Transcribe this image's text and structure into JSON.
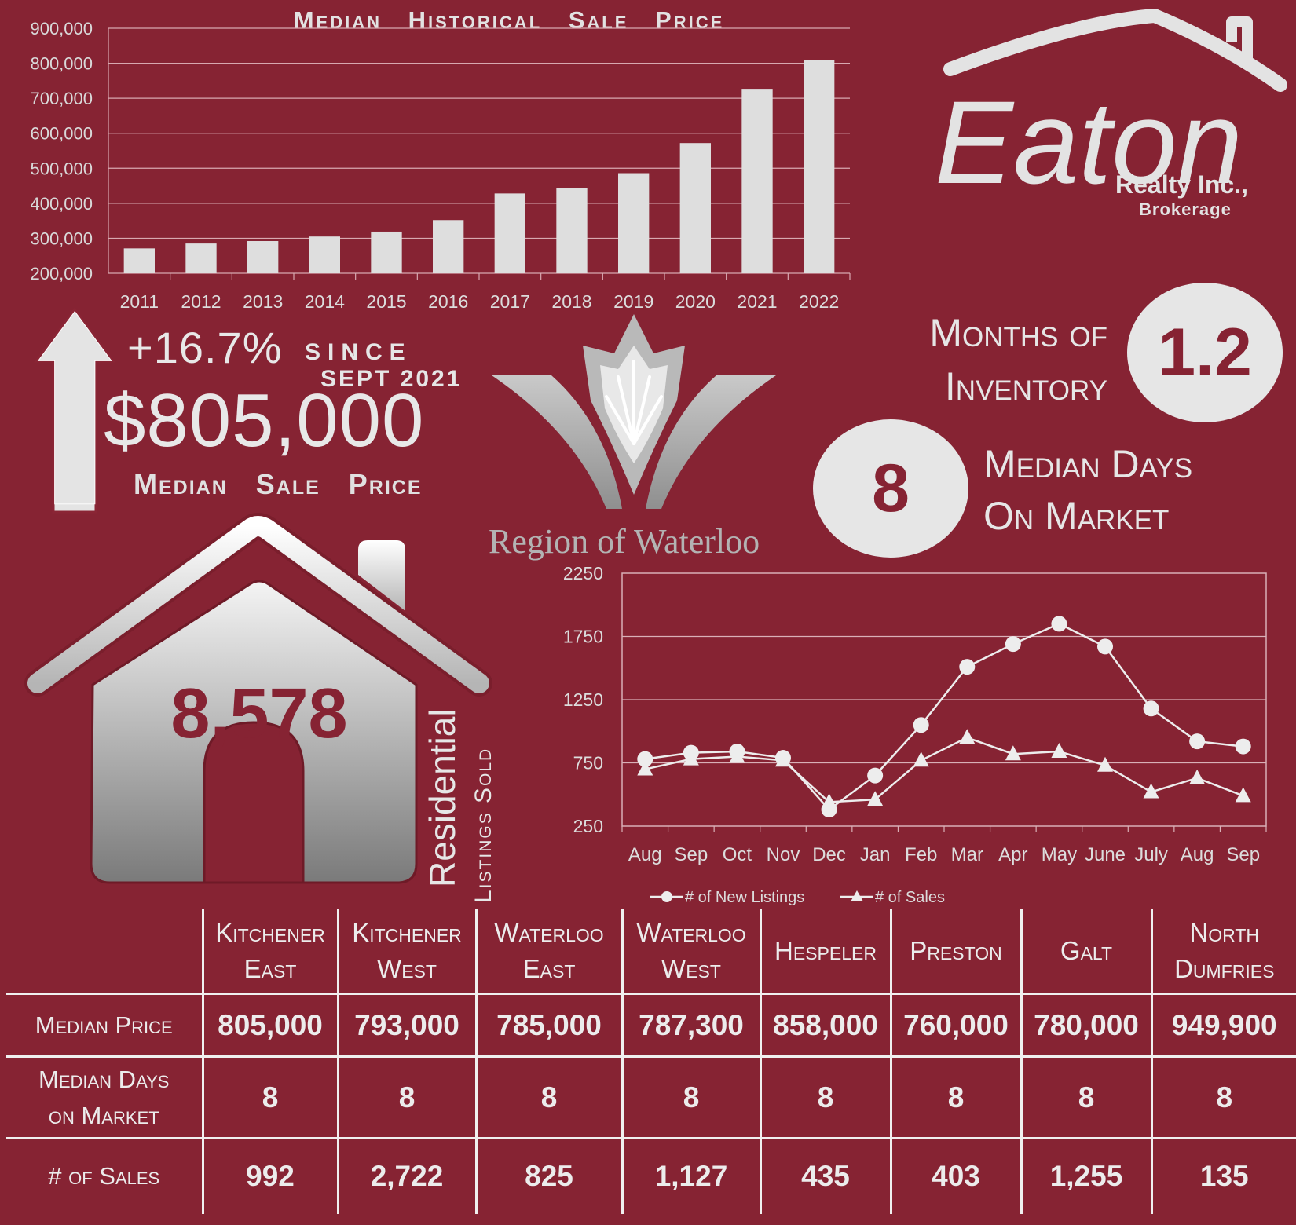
{
  "chart_data": [
    {
      "type": "bar",
      "title": "Median Historical Sale Price",
      "categories": [
        "2011",
        "2012",
        "2013",
        "2014",
        "2015",
        "2016",
        "2017",
        "2018",
        "2019",
        "2020",
        "2021",
        "2022"
      ],
      "values": [
        271000,
        285000,
        292000,
        305000,
        319000,
        352000,
        428000,
        443000,
        486000,
        572000,
        727000,
        810000
      ],
      "ylim": [
        200000,
        900000
      ],
      "yticks": [
        "200,000",
        "300,000",
        "400,000",
        "500,000",
        "600,000",
        "700,000",
        "800,000",
        "900,000"
      ],
      "ytick_values": [
        200000,
        300000,
        400000,
        500000,
        600000,
        700000,
        800000,
        900000
      ],
      "grid": true,
      "bar_color": "#dedede"
    },
    {
      "type": "line",
      "categories": [
        "Aug",
        "Sep",
        "Oct",
        "Nov",
        "Dec",
        "Jan",
        "Feb",
        "Mar",
        "Apr",
        "May",
        "June",
        "July",
        "Aug",
        "Sep"
      ],
      "series": [
        {
          "name": "# of New Listings",
          "marker": "circle",
          "values": [
            780,
            830,
            840,
            790,
            380,
            650,
            1050,
            1510,
            1690,
            1850,
            1670,
            1180,
            920,
            880
          ]
        },
        {
          "name": "# of Sales",
          "marker": "triangle",
          "values": [
            700,
            780,
            800,
            770,
            440,
            460,
            770,
            950,
            820,
            840,
            730,
            520,
            630,
            490
          ]
        }
      ],
      "ylim": [
        250,
        2250
      ],
      "yticks": [
        "250",
        "750",
        "1250",
        "1750",
        "2250"
      ],
      "ytick_values": [
        250,
        750,
        1250,
        1750,
        2250
      ],
      "grid": true,
      "legend": "bottom"
    }
  ],
  "brand": {
    "name": "Eaton",
    "line1": "Realty Inc.,",
    "line2": "Brokerage"
  },
  "headline": {
    "change": "+16.7%",
    "since": "SINCE",
    "since_date": "SEPT 2021",
    "price": "$805,000",
    "price_label": "Median Sale Price"
  },
  "inventory": {
    "months_label_1": "Months of",
    "months_label_2": "Inventory",
    "months_value": "1.2",
    "days_value": "8",
    "days_label_1": "Median Days",
    "days_label_2": "On Market"
  },
  "region": "Region of Waterloo",
  "sold": {
    "value": "8,578",
    "label_1": "Residential",
    "label_2": "Listings Sold"
  },
  "table": {
    "columns": [
      {
        "l1": "Kitchener",
        "l2": "East"
      },
      {
        "l1": "Kitchener",
        "l2": "West"
      },
      {
        "l1": "Waterloo",
        "l2": "East"
      },
      {
        "l1": "Waterloo",
        "l2": "West"
      },
      {
        "l1": "Hespeler",
        "l2": ""
      },
      {
        "l1": "Preston",
        "l2": ""
      },
      {
        "l1": "Galt",
        "l2": ""
      },
      {
        "l1": "North",
        "l2": "Dumfries"
      }
    ],
    "rows": [
      {
        "l1": "Median Price",
        "l2": "",
        "values": [
          "805,000",
          "793,000",
          "785,000",
          "787,300",
          "858,000",
          "760,000",
          "780,000",
          "949,900"
        ]
      },
      {
        "l1": "Median Days",
        "l2": "on Market",
        "values": [
          "8",
          "8",
          "8",
          "8",
          "8",
          "8",
          "8",
          "8"
        ]
      },
      {
        "l1": "# of Sales",
        "l2": "",
        "values": [
          "992",
          "2,722",
          "825",
          "1,127",
          "435",
          "403",
          "1,255",
          "135"
        ]
      }
    ]
  },
  "colors": {
    "background": "#862333",
    "light": "#e6e6e6"
  },
  "icons": [
    "up-arrow-icon",
    "house-icon",
    "house-roof-logo-icon",
    "maple-leaf-w-icon"
  ]
}
